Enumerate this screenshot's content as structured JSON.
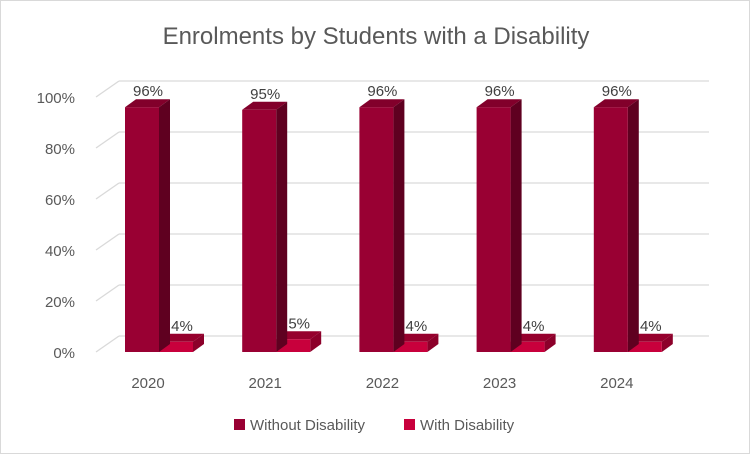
{
  "chart_data": {
    "type": "bar",
    "style": "3d-clustered-column",
    "title": "Enrolments by Students with a Disability",
    "categories": [
      "2020",
      "2021",
      "2022",
      "2023",
      "2024"
    ],
    "series": [
      {
        "name": "Without Disability",
        "values": [
          96,
          95,
          96,
          96,
          96
        ],
        "labels": [
          "96%",
          "95%",
          "96%",
          "96%",
          "96%"
        ],
        "color": "#990033"
      },
      {
        "name": "With Disability",
        "values": [
          4,
          5,
          4,
          4,
          4
        ],
        "labels": [
          "4%",
          "5%",
          "4%",
          "4%",
          "4%"
        ],
        "color": "#C8003C"
      }
    ],
    "yticks": [
      "0%",
      "20%",
      "40%",
      "60%",
      "80%",
      "100%"
    ],
    "ylim": [
      0,
      100
    ],
    "grid": true,
    "legend": "bottom"
  }
}
